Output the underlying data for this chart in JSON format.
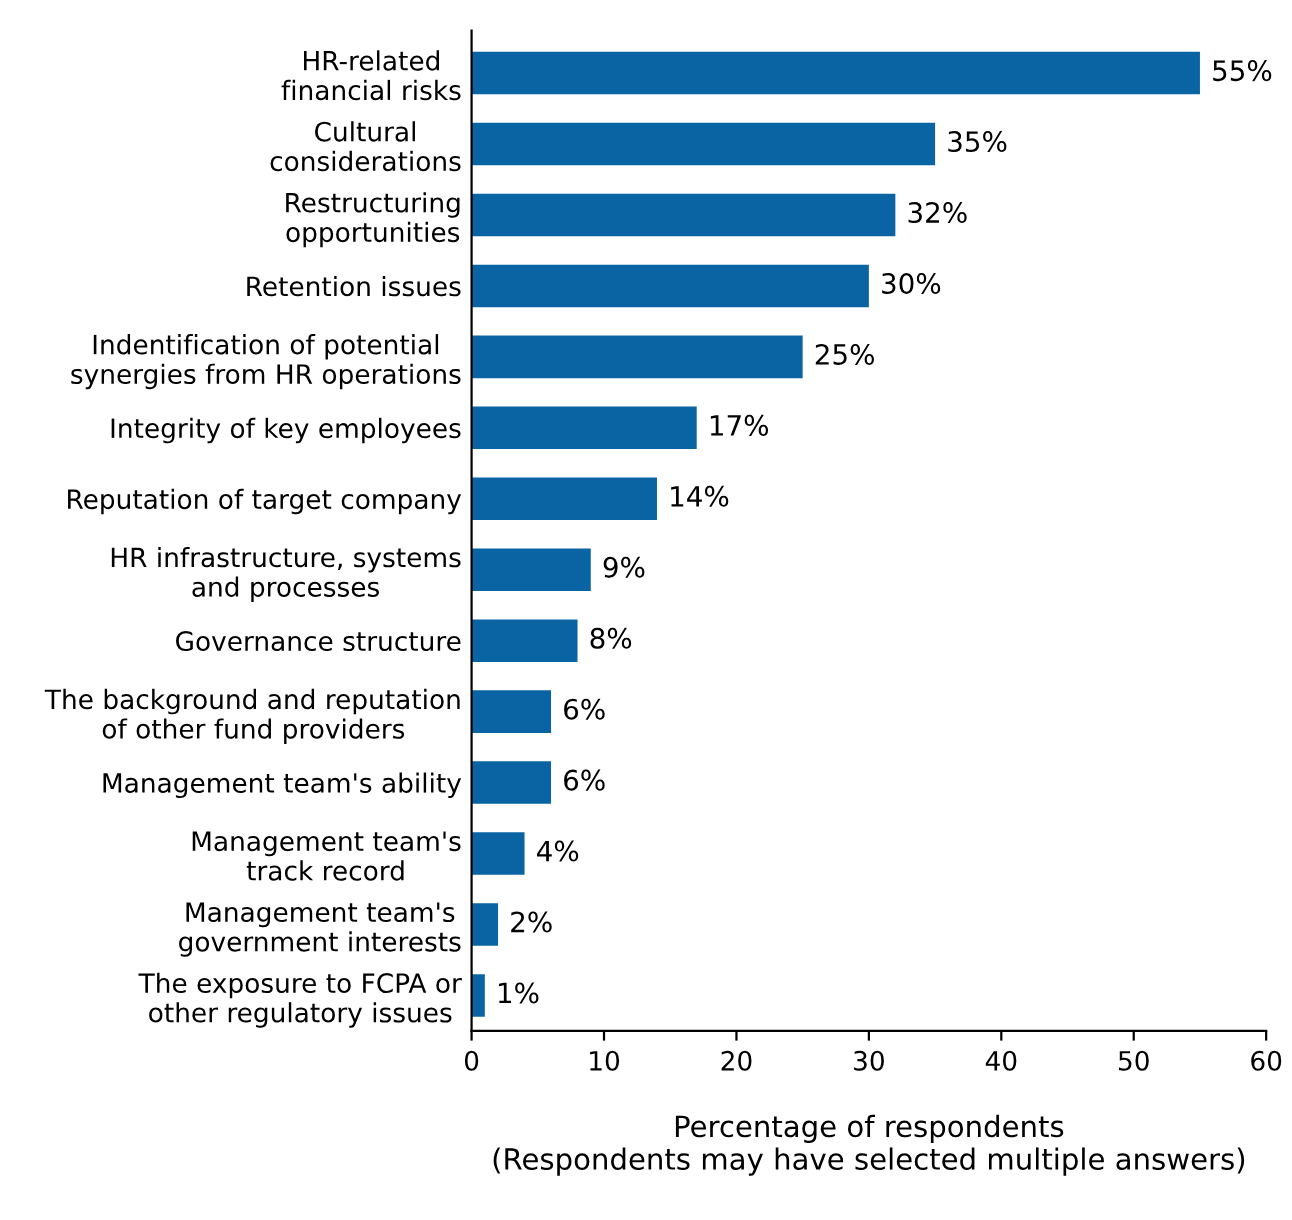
{
  "chart_data": {
    "type": "bar",
    "orientation": "horizontal",
    "categories": [
      "HR-related\nfinancial risks",
      "Cultural\nconsiderations",
      "Restructuring\nopportunities",
      "Retention issues",
      "Indentification of potential\nsynergies from HR operations",
      "Integrity of key employees",
      "Reputation of target company",
      "HR infrastructure, systems\nand processes",
      "Governance structure",
      "The background and reputation\nof other fund providers",
      "Management team's ability",
      "Management team's\ntrack record",
      "Management team's\ngovernment interests",
      "The exposure to FCPA or\nother regulatory issues"
    ],
    "values": [
      55,
      35,
      32,
      30,
      25,
      17,
      14,
      9,
      8,
      6,
      6,
      4,
      2,
      1
    ],
    "value_labels": [
      "55%",
      "35%",
      "32%",
      "30%",
      "25%",
      "17%",
      "14%",
      "9%",
      "8%",
      "6%",
      "6%",
      "4%",
      "2%",
      "1%"
    ],
    "color": "#0a64a4",
    "xlim": [
      0,
      60
    ],
    "xticks": [
      0,
      10,
      20,
      30,
      40,
      50,
      60
    ],
    "xlabel": "Percentage of respondents\n(Respondents may have selected multiple answers)",
    "grid": false,
    "legend": false
  }
}
